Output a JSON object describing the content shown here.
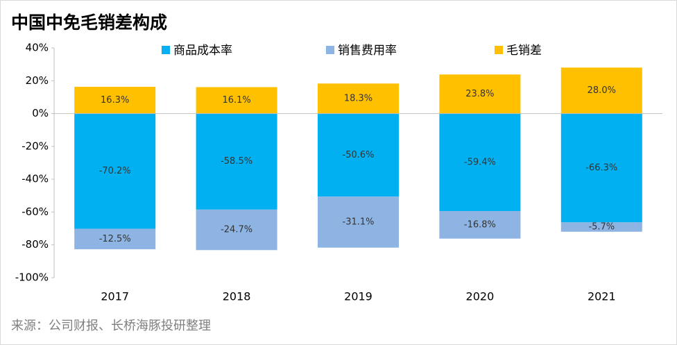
{
  "chart_data": {
    "type": "stacked_bar",
    "title": "中国中免毛销差构成",
    "source": "来源：公司财报、长桥海豚投研整理",
    "categories": [
      "2017",
      "2018",
      "2019",
      "2020",
      "2021"
    ],
    "series": [
      {
        "name": "商品成本率",
        "color": "#00b0f0",
        "values": [
          -70.2,
          -58.5,
          -50.6,
          -59.4,
          -66.3
        ],
        "value_labels": [
          "-70.2%",
          "-58.5%",
          "-50.6%",
          "-59.4%",
          "-66.3%"
        ]
      },
      {
        "name": "销售费用率",
        "color": "#8eb4e3",
        "values": [
          -12.5,
          -24.7,
          -31.1,
          -16.8,
          -5.7
        ],
        "value_labels": [
          "-12.5%",
          "-24.7%",
          "-31.1%",
          "-16.8%",
          "-5.7%"
        ]
      },
      {
        "name": "毛销差",
        "color": "#ffc000",
        "values": [
          16.3,
          16.1,
          18.3,
          23.8,
          28.0
        ],
        "value_labels": [
          "16.3%",
          "16.1%",
          "18.3%",
          "23.8%",
          "28.0%"
        ]
      }
    ],
    "ylim": [
      -100,
      40
    ],
    "yticks": [
      {
        "value": 40,
        "label": "40%"
      },
      {
        "value": 20,
        "label": "20%"
      },
      {
        "value": 0,
        "label": "0%"
      },
      {
        "value": -20,
        "label": "-20%"
      },
      {
        "value": -40,
        "label": "-40%"
      },
      {
        "value": -60,
        "label": "-60%"
      },
      {
        "value": -80,
        "label": "-80%"
      },
      {
        "value": -100,
        "label": "-100%"
      }
    ],
    "grid": false,
    "legend": "top"
  }
}
